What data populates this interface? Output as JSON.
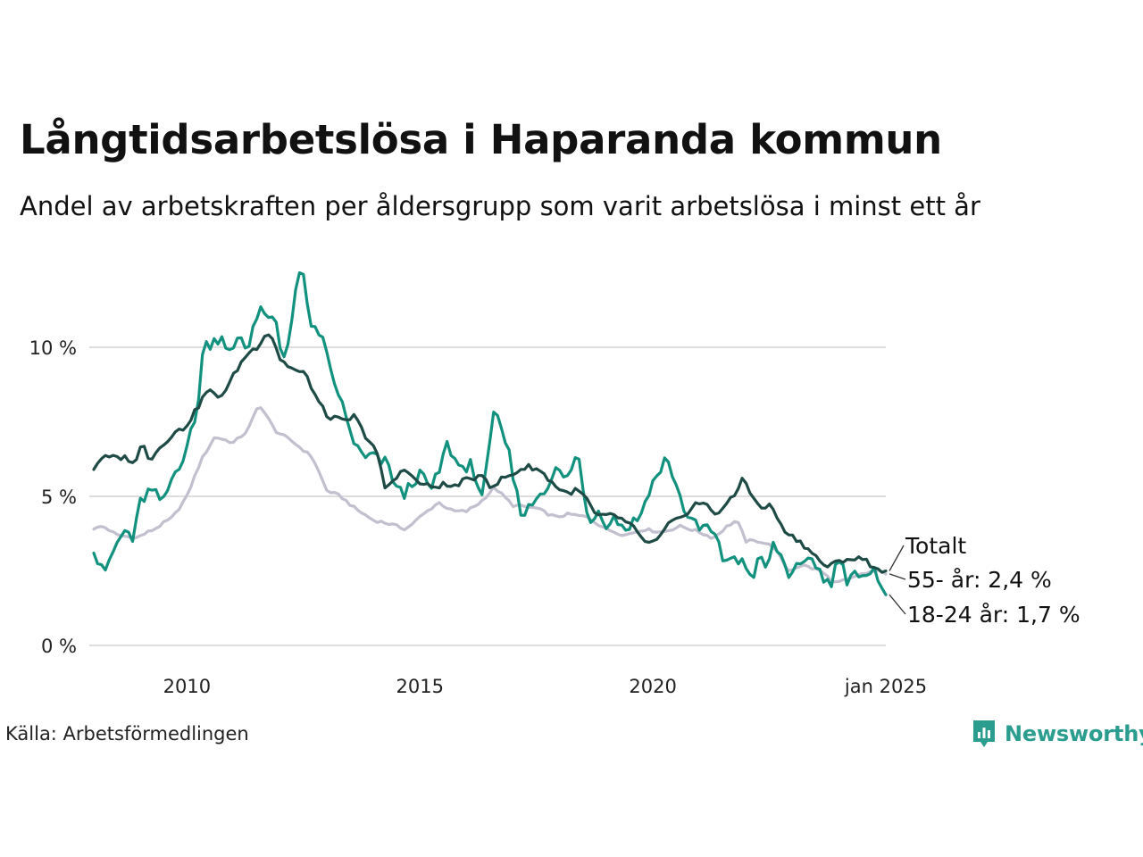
{
  "title": "Långtidsarbetslösa i Haparanda kommun",
  "subtitle": "Andel av arbetskraften per åldersgrupp som varit arbetslösa i minst ett år",
  "source": "Källa: Arbetsförmedlingen",
  "brand": "Newsworthy",
  "colors": {
    "brand": "#2a9d8f",
    "gridline": "#dddddd"
  },
  "chart_data": {
    "type": "line",
    "title": "Långtidsarbetslösa i Haparanda kommun",
    "x_start": "2008-01",
    "x_end": "2025-01",
    "xlim": [
      2008.0,
      2025.0
    ],
    "ylim": [
      0,
      13
    ],
    "grid": true,
    "x_ticks": [
      {
        "value": 2010.0,
        "label": "2010"
      },
      {
        "value": 2015.0,
        "label": "2015"
      },
      {
        "value": 2020.0,
        "label": "2020"
      },
      {
        "value": 2025.0,
        "label": "jan 2025"
      }
    ],
    "y_ticks": [
      {
        "value": 0,
        "label": "0 %"
      },
      {
        "value": 5,
        "label": "5 %"
      },
      {
        "value": 10,
        "label": "10 %"
      }
    ],
    "series": [
      {
        "name": "55- år",
        "label": "55- år: 2,4 %",
        "color": "#c2bfce",
        "knots": [
          [
            2008.0,
            3.9
          ],
          [
            2008.2,
            4.0
          ],
          [
            2008.5,
            3.7
          ],
          [
            2008.9,
            3.6
          ],
          [
            2009.3,
            3.9
          ],
          [
            2009.7,
            4.3
          ],
          [
            2010.0,
            5.0
          ],
          [
            2010.3,
            6.2
          ],
          [
            2010.6,
            7.0
          ],
          [
            2011.0,
            6.8
          ],
          [
            2011.3,
            7.2
          ],
          [
            2011.55,
            8.1
          ],
          [
            2011.9,
            7.2
          ],
          [
            2012.3,
            6.8
          ],
          [
            2012.7,
            6.3
          ],
          [
            2013.0,
            5.2
          ],
          [
            2013.3,
            5.0
          ],
          [
            2013.6,
            4.6
          ],
          [
            2014.0,
            4.2
          ],
          [
            2014.3,
            4.1
          ],
          [
            2014.7,
            3.9
          ],
          [
            2015.0,
            4.3
          ],
          [
            2015.4,
            4.8
          ],
          [
            2015.7,
            4.5
          ],
          [
            2016.0,
            4.5
          ],
          [
            2016.3,
            4.8
          ],
          [
            2016.6,
            5.3
          ],
          [
            2017.0,
            4.7
          ],
          [
            2017.5,
            4.6
          ],
          [
            2017.9,
            4.3
          ],
          [
            2018.2,
            4.4
          ],
          [
            2018.6,
            4.3
          ],
          [
            2019.0,
            3.9
          ],
          [
            2019.4,
            3.7
          ],
          [
            2019.8,
            3.9
          ],
          [
            2020.2,
            3.8
          ],
          [
            2020.6,
            4.0
          ],
          [
            2021.0,
            3.8
          ],
          [
            2021.3,
            3.6
          ],
          [
            2021.6,
            4.0
          ],
          [
            2021.8,
            4.2
          ],
          [
            2022.0,
            3.5
          ],
          [
            2022.3,
            3.5
          ],
          [
            2022.6,
            3.3
          ],
          [
            2022.9,
            2.5
          ],
          [
            2023.2,
            2.7
          ],
          [
            2023.6,
            2.5
          ],
          [
            2023.9,
            2.1
          ],
          [
            2024.2,
            2.2
          ],
          [
            2024.5,
            2.4
          ],
          [
            2024.8,
            2.5
          ],
          [
            2025.0,
            2.4
          ]
        ]
      },
      {
        "name": "18-24 år",
        "label": "18-24 år: 1,7 %",
        "color": "#12927e",
        "knots": [
          [
            2008.0,
            3.1
          ],
          [
            2008.15,
            2.8
          ],
          [
            2008.3,
            2.5
          ],
          [
            2008.45,
            3.3
          ],
          [
            2008.7,
            3.9
          ],
          [
            2008.85,
            3.5
          ],
          [
            2009.0,
            4.8
          ],
          [
            2009.2,
            5.2
          ],
          [
            2009.5,
            4.8
          ],
          [
            2009.65,
            5.5
          ],
          [
            2009.9,
            6.3
          ],
          [
            2010.2,
            7.6
          ],
          [
            2010.35,
            10.0
          ],
          [
            2010.55,
            10.2
          ],
          [
            2010.75,
            10.4
          ],
          [
            2010.95,
            9.7
          ],
          [
            2011.15,
            10.4
          ],
          [
            2011.3,
            9.8
          ],
          [
            2011.45,
            11.0
          ],
          [
            2011.6,
            11.4
          ],
          [
            2011.75,
            10.8
          ],
          [
            2011.85,
            11.2
          ],
          [
            2012.0,
            9.9
          ],
          [
            2012.1,
            9.5
          ],
          [
            2012.2,
            10.3
          ],
          [
            2012.3,
            11.6
          ],
          [
            2012.4,
            12.7
          ],
          [
            2012.5,
            12.5
          ],
          [
            2012.65,
            10.5
          ],
          [
            2012.8,
            10.7
          ],
          [
            2012.95,
            10.0
          ],
          [
            2013.1,
            9.0
          ],
          [
            2013.25,
            8.5
          ],
          [
            2013.45,
            7.4
          ],
          [
            2013.6,
            6.8
          ],
          [
            2013.8,
            6.2
          ],
          [
            2013.95,
            6.4
          ],
          [
            2014.1,
            6.2
          ],
          [
            2014.3,
            6.1
          ],
          [
            2014.5,
            5.3
          ],
          [
            2014.65,
            5.0
          ],
          [
            2014.8,
            5.4
          ],
          [
            2014.95,
            5.7
          ],
          [
            2015.1,
            5.6
          ],
          [
            2015.25,
            5.2
          ],
          [
            2015.4,
            5.8
          ],
          [
            2015.6,
            6.8
          ],
          [
            2015.75,
            6.2
          ],
          [
            2015.95,
            5.9
          ],
          [
            2016.1,
            6.3
          ],
          [
            2016.2,
            5.0
          ],
          [
            2016.35,
            5.3
          ],
          [
            2016.5,
            6.9
          ],
          [
            2016.6,
            7.8
          ],
          [
            2016.75,
            7.1
          ],
          [
            2016.9,
            6.5
          ],
          [
            2017.05,
            5.2
          ],
          [
            2017.2,
            4.4
          ],
          [
            2017.35,
            4.6
          ],
          [
            2017.5,
            5.0
          ],
          [
            2017.65,
            5.2
          ],
          [
            2017.8,
            5.6
          ],
          [
            2017.95,
            5.9
          ],
          [
            2018.15,
            5.5
          ],
          [
            2018.3,
            6.2
          ],
          [
            2018.4,
            6.4
          ],
          [
            2018.55,
            4.6
          ],
          [
            2018.7,
            4.2
          ],
          [
            2018.85,
            4.6
          ],
          [
            2019.0,
            4.1
          ],
          [
            2019.2,
            4.3
          ],
          [
            2019.4,
            3.9
          ],
          [
            2019.55,
            4.1
          ],
          [
            2019.75,
            4.4
          ],
          [
            2019.9,
            5.2
          ],
          [
            2020.1,
            5.7
          ],
          [
            2020.25,
            6.2
          ],
          [
            2020.4,
            5.9
          ],
          [
            2020.55,
            5.1
          ],
          [
            2020.7,
            4.5
          ],
          [
            2020.85,
            4.1
          ],
          [
            2021.0,
            3.9
          ],
          [
            2021.15,
            4.0
          ],
          [
            2021.35,
            3.6
          ],
          [
            2021.5,
            2.9
          ],
          [
            2021.65,
            3.0
          ],
          [
            2021.8,
            2.7
          ],
          [
            2021.95,
            3.0
          ],
          [
            2022.1,
            2.2
          ],
          [
            2022.3,
            2.9
          ],
          [
            2022.45,
            2.6
          ],
          [
            2022.6,
            3.4
          ],
          [
            2022.75,
            3.0
          ],
          [
            2022.9,
            2.4
          ],
          [
            2023.05,
            2.6
          ],
          [
            2023.2,
            2.5
          ],
          [
            2023.4,
            3.0
          ],
          [
            2023.55,
            2.6
          ],
          [
            2023.7,
            2.1
          ],
          [
            2023.85,
            2.2
          ],
          [
            2024.0,
            3.0
          ],
          [
            2024.15,
            2.2
          ],
          [
            2024.3,
            2.6
          ],
          [
            2024.45,
            2.2
          ],
          [
            2024.6,
            2.2
          ],
          [
            2024.75,
            2.4
          ],
          [
            2024.9,
            2.2
          ],
          [
            2025.0,
            1.7
          ]
        ]
      },
      {
        "name": "Totalt",
        "label": "Totalt",
        "color": "#1e4b45",
        "knots": [
          [
            2008.0,
            5.9
          ],
          [
            2008.15,
            6.3
          ],
          [
            2008.4,
            6.3
          ],
          [
            2008.7,
            6.3
          ],
          [
            2008.9,
            6.1
          ],
          [
            2009.05,
            6.9
          ],
          [
            2009.2,
            6.2
          ],
          [
            2009.45,
            6.7
          ],
          [
            2009.7,
            7.1
          ],
          [
            2009.95,
            7.3
          ],
          [
            2010.2,
            7.9
          ],
          [
            2010.45,
            8.6
          ],
          [
            2010.65,
            8.3
          ],
          [
            2010.85,
            8.6
          ],
          [
            2011.05,
            9.2
          ],
          [
            2011.3,
            9.8
          ],
          [
            2011.5,
            10.0
          ],
          [
            2011.7,
            10.5
          ],
          [
            2011.85,
            10.3
          ],
          [
            2012.0,
            9.6
          ],
          [
            2012.15,
            9.4
          ],
          [
            2012.35,
            9.2
          ],
          [
            2012.55,
            9.1
          ],
          [
            2012.75,
            8.4
          ],
          [
            2013.0,
            7.7
          ],
          [
            2013.2,
            7.6
          ],
          [
            2013.4,
            7.5
          ],
          [
            2013.6,
            7.7
          ],
          [
            2013.8,
            7.1
          ],
          [
            2014.05,
            6.6
          ],
          [
            2014.25,
            5.3
          ],
          [
            2014.45,
            5.5
          ],
          [
            2014.65,
            6.0
          ],
          [
            2014.85,
            5.6
          ],
          [
            2015.05,
            5.4
          ],
          [
            2015.3,
            5.3
          ],
          [
            2015.5,
            5.4
          ],
          [
            2015.7,
            5.3
          ],
          [
            2015.9,
            5.5
          ],
          [
            2016.15,
            5.6
          ],
          [
            2016.35,
            5.8
          ],
          [
            2016.55,
            5.2
          ],
          [
            2016.75,
            5.6
          ],
          [
            2016.95,
            5.7
          ],
          [
            2017.15,
            5.9
          ],
          [
            2017.35,
            6.0
          ],
          [
            2017.55,
            5.9
          ],
          [
            2017.75,
            5.6
          ],
          [
            2017.95,
            5.3
          ],
          [
            2018.15,
            5.1
          ],
          [
            2018.35,
            5.2
          ],
          [
            2018.55,
            5.0
          ],
          [
            2018.75,
            4.4
          ],
          [
            2018.95,
            4.3
          ],
          [
            2019.15,
            4.4
          ],
          [
            2019.35,
            4.2
          ],
          [
            2019.55,
            4.0
          ],
          [
            2019.75,
            3.6
          ],
          [
            2019.95,
            3.4
          ],
          [
            2020.15,
            3.6
          ],
          [
            2020.35,
            4.1
          ],
          [
            2020.55,
            4.2
          ],
          [
            2020.75,
            4.5
          ],
          [
            2020.95,
            4.8
          ],
          [
            2021.15,
            4.7
          ],
          [
            2021.35,
            4.4
          ],
          [
            2021.55,
            4.7
          ],
          [
            2021.75,
            5.0
          ],
          [
            2021.95,
            5.7
          ],
          [
            2022.15,
            4.9
          ],
          [
            2022.35,
            4.6
          ],
          [
            2022.55,
            4.7
          ],
          [
            2022.75,
            4.0
          ],
          [
            2022.95,
            3.7
          ],
          [
            2023.15,
            3.5
          ],
          [
            2023.35,
            3.2
          ],
          [
            2023.55,
            2.9
          ],
          [
            2023.75,
            2.6
          ],
          [
            2023.95,
            2.8
          ],
          [
            2024.15,
            2.9
          ],
          [
            2024.35,
            2.9
          ],
          [
            2024.55,
            2.9
          ],
          [
            2024.75,
            2.6
          ],
          [
            2025.0,
            2.5
          ]
        ]
      }
    ]
  }
}
